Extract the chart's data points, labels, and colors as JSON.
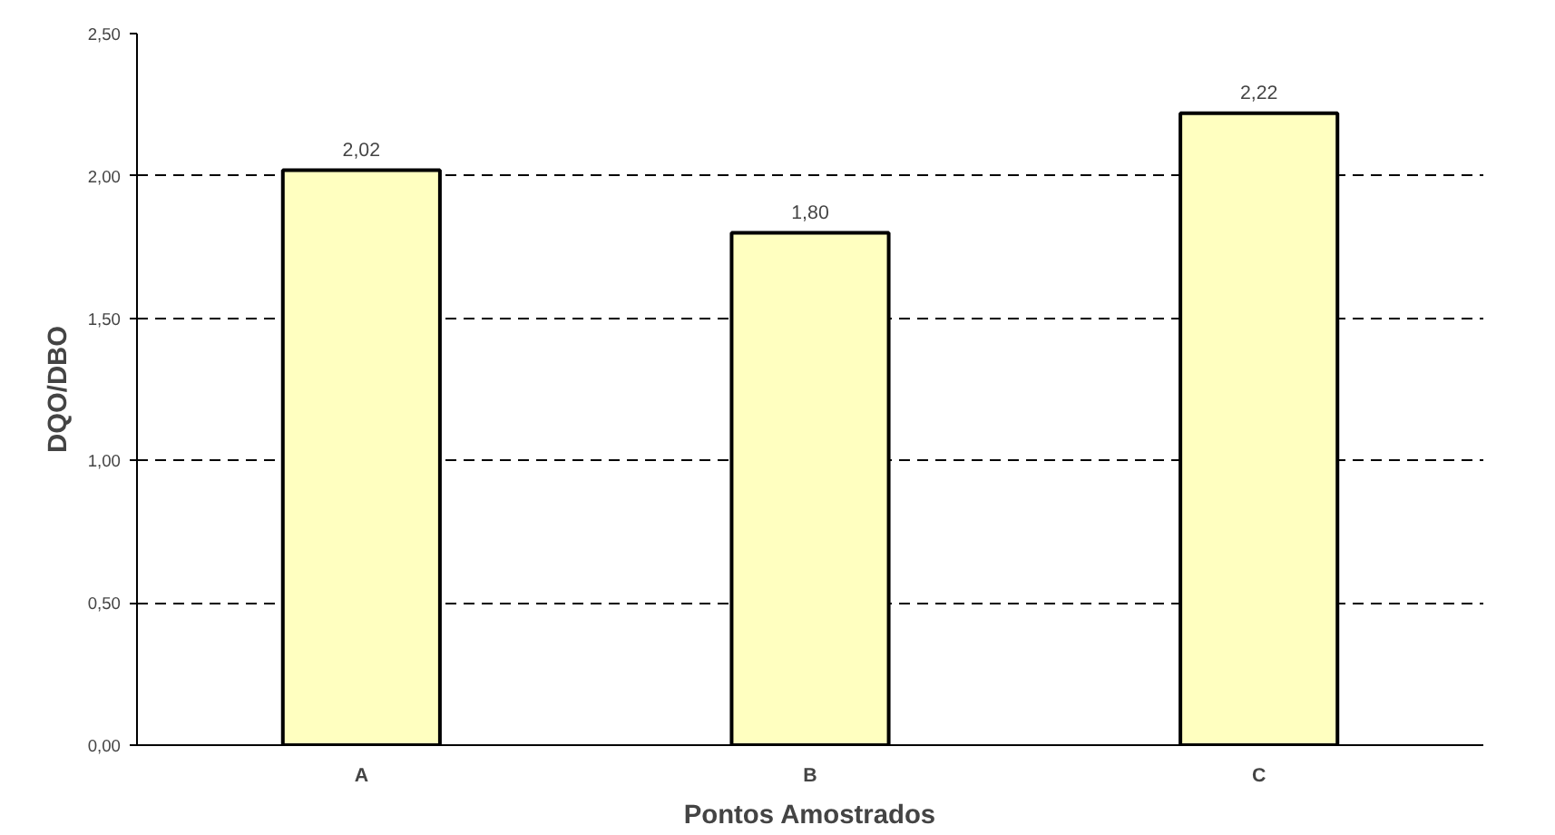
{
  "chart_data": {
    "type": "bar",
    "xlabel": "Pontos Amostrados",
    "ylabel": "DQO/DBO",
    "categories": [
      "A",
      "B",
      "C"
    ],
    "values": [
      2.02,
      1.8,
      2.22
    ],
    "value_labels": [
      "2,02",
      "1,80",
      "2,22"
    ],
    "color": "#ffffc0",
    "ylim": [
      0,
      2.5
    ],
    "yticks": [
      {
        "value": 0,
        "label": "0,00"
      },
      {
        "value": 0.5,
        "label": "0,50"
      },
      {
        "value": 1,
        "label": "1,00"
      },
      {
        "value": 1.5,
        "label": "1,50"
      },
      {
        "value": 2,
        "label": "2,00"
      },
      {
        "value": 2.5,
        "label": "2,50"
      }
    ],
    "grid": "y"
  }
}
